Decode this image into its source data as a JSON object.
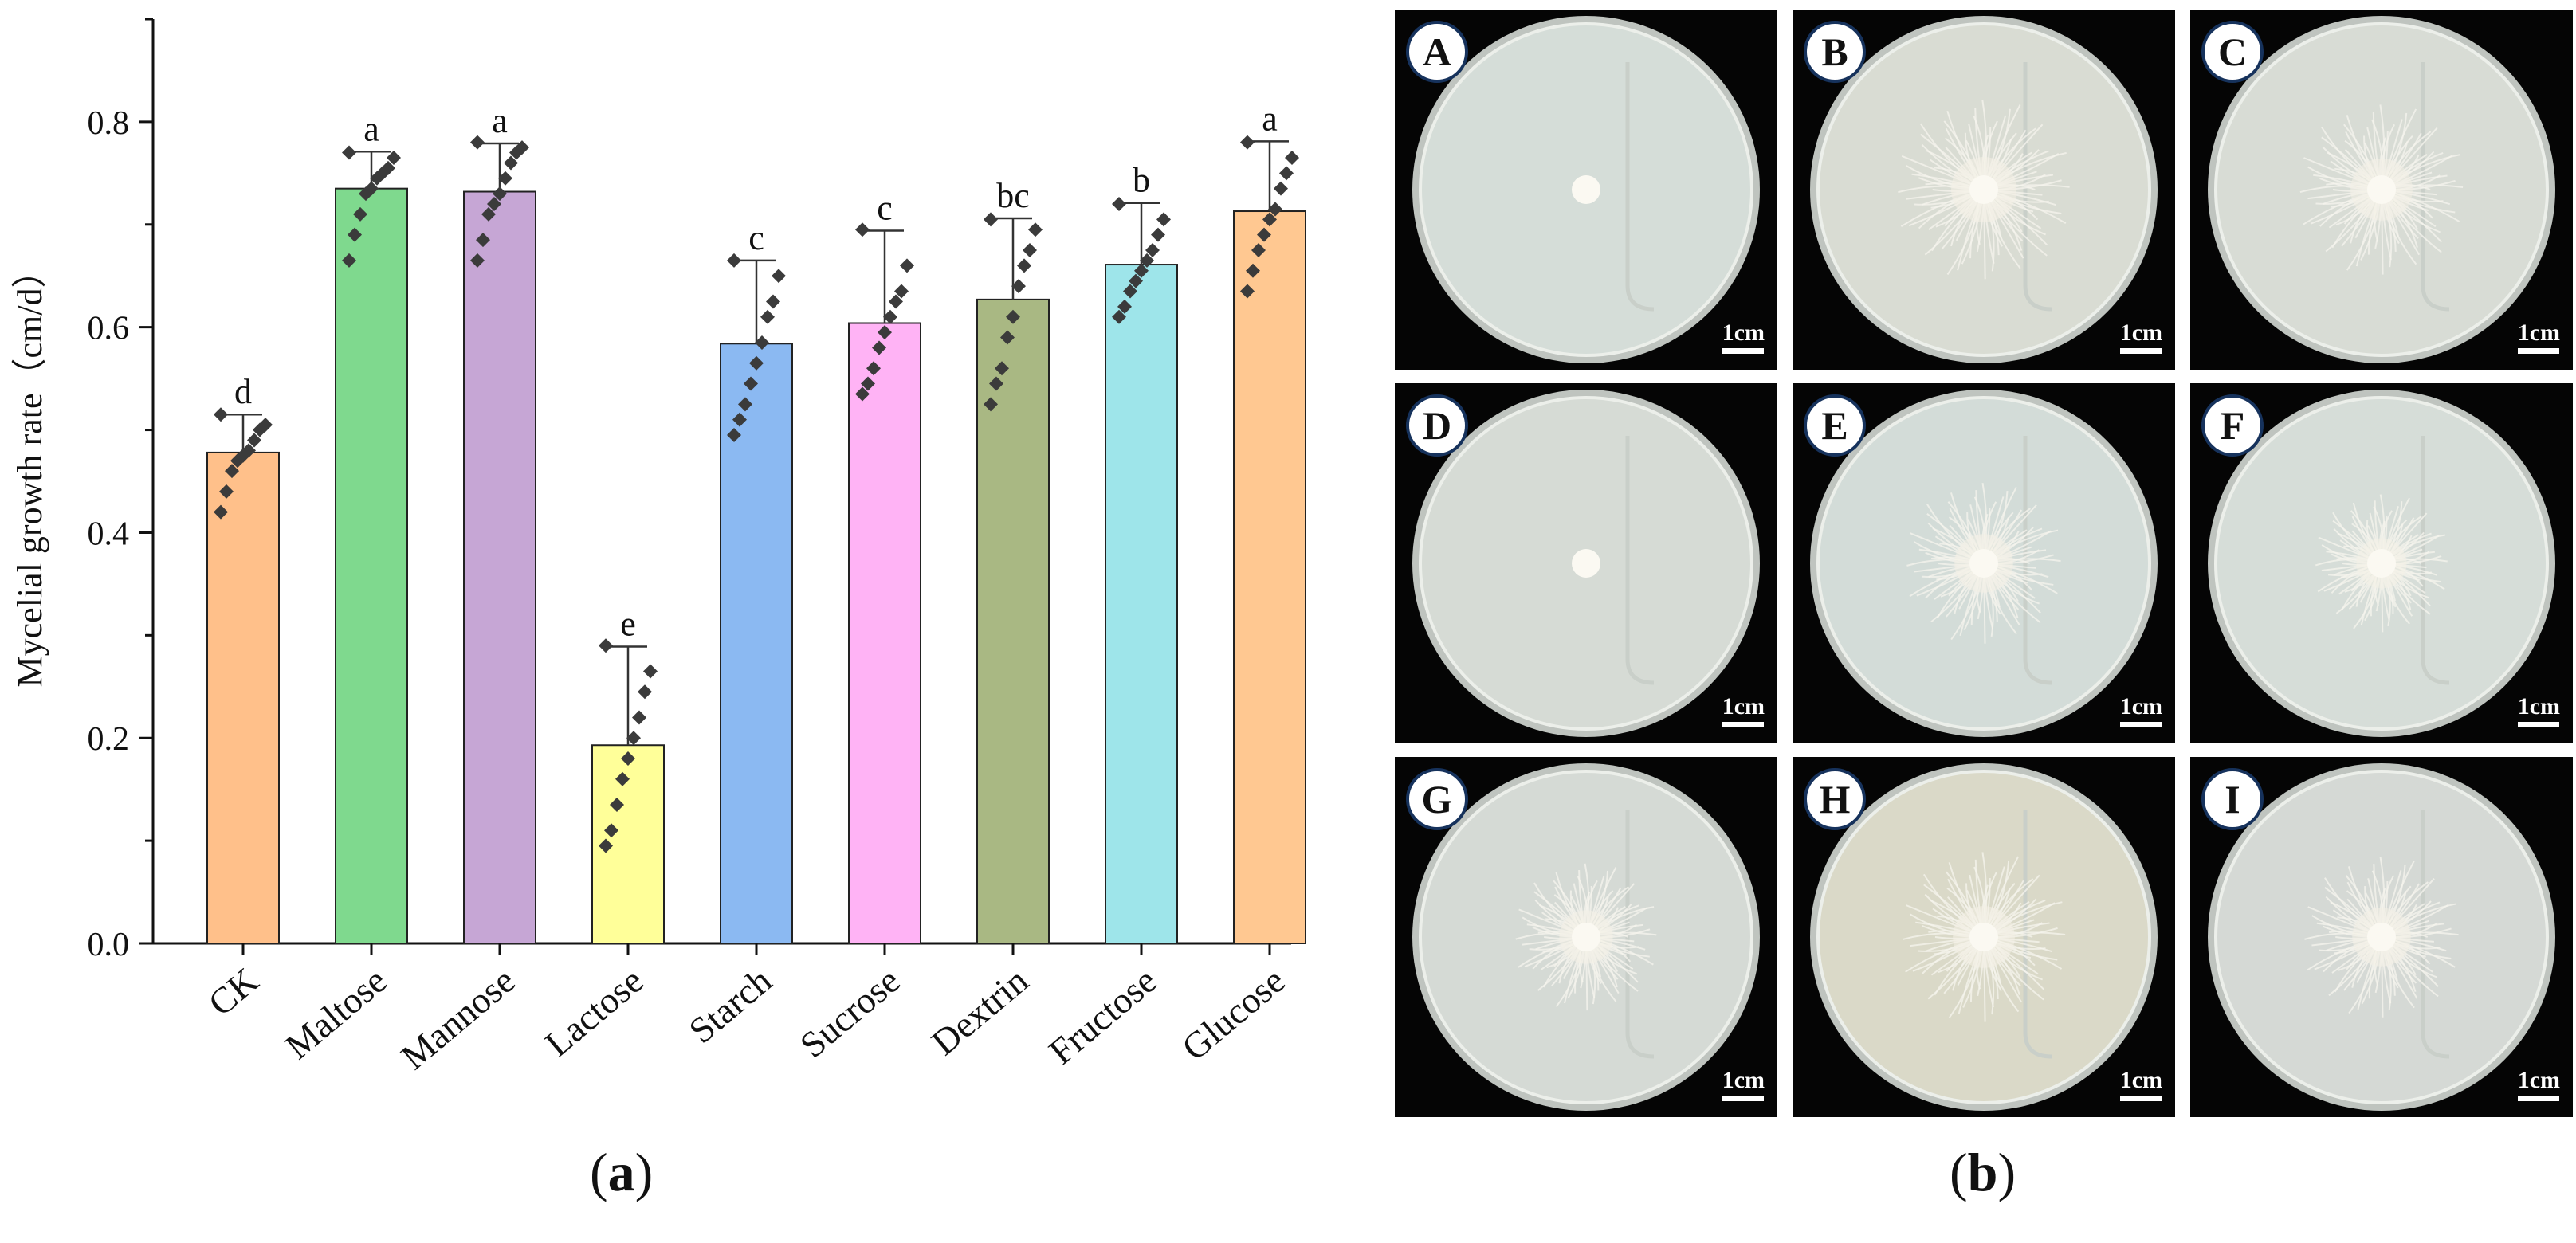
{
  "chart_data": {
    "type": "bar",
    "ylabel": "Mycelial growth rate（cm/d）",
    "xlabel": "",
    "ylim": [
      0,
      0.9
    ],
    "yticks": [
      0.0,
      0.2,
      0.4,
      0.6,
      0.8
    ],
    "ytick_labels": [
      "0.0",
      "0.2",
      "0.4",
      "0.6",
      "0.8"
    ],
    "categories": [
      "CK",
      "Maltose",
      "Mannose",
      "Lactose",
      "Starch",
      "Sucrose",
      "Dextrin",
      "Fructose",
      "Glucose"
    ],
    "values": [
      0.478,
      0.735,
      0.732,
      0.193,
      0.584,
      0.604,
      0.627,
      0.661,
      0.713
    ],
    "errors": [
      0.037,
      0.036,
      0.047,
      0.096,
      0.081,
      0.09,
      0.079,
      0.06,
      0.068
    ],
    "letters": [
      "d",
      "a",
      "a",
      "e",
      "c",
      "c",
      "bc",
      "b",
      "a"
    ],
    "colors": [
      "#FFC08A",
      "#7FD98E",
      "#C6A6D5",
      "#FFFF99",
      "#8BB9F2",
      "#FFB3F5",
      "#A9B883",
      "#9EE5EA",
      "#FFC891"
    ],
    "points": [
      [
        0.42,
        0.44,
        0.46,
        0.47,
        0.475,
        0.48,
        0.49,
        0.5,
        0.505,
        0.515
      ],
      [
        0.665,
        0.69,
        0.71,
        0.73,
        0.735,
        0.745,
        0.75,
        0.755,
        0.765,
        0.77
      ],
      [
        0.665,
        0.685,
        0.71,
        0.72,
        0.73,
        0.745,
        0.76,
        0.77,
        0.775,
        0.78
      ],
      [
        0.095,
        0.11,
        0.135,
        0.16,
        0.18,
        0.2,
        0.22,
        0.245,
        0.265,
        0.29
      ],
      [
        0.495,
        0.51,
        0.525,
        0.545,
        0.565,
        0.585,
        0.61,
        0.625,
        0.65,
        0.665
      ],
      [
        0.535,
        0.545,
        0.56,
        0.58,
        0.595,
        0.61,
        0.625,
        0.635,
        0.66,
        0.695
      ],
      [
        0.525,
        0.545,
        0.56,
        0.59,
        0.61,
        0.64,
        0.66,
        0.675,
        0.695,
        0.705
      ],
      [
        0.61,
        0.62,
        0.635,
        0.645,
        0.655,
        0.665,
        0.675,
        0.69,
        0.705,
        0.72
      ],
      [
        0.635,
        0.655,
        0.675,
        0.69,
        0.705,
        0.715,
        0.735,
        0.75,
        0.765,
        0.78
      ]
    ],
    "marker_color": "#3b3b3b",
    "grid": false,
    "legend": "none"
  },
  "captions": {
    "a": "a",
    "b": "b",
    "open": "(",
    "close": ")"
  },
  "plates": {
    "scale_label": "1cm",
    "items": [
      {
        "letter": "A",
        "growth": 0.0,
        "tint": "#D5DDD8"
      },
      {
        "letter": "B",
        "growth": 0.78,
        "tint": "#D9DCD3"
      },
      {
        "letter": "C",
        "growth": 0.74,
        "tint": "#D8DCD5"
      },
      {
        "letter": "D",
        "growth": 0.0,
        "tint": "#D6DBD5"
      },
      {
        "letter": "E",
        "growth": 0.7,
        "tint": "#D3DCD8"
      },
      {
        "letter": "F",
        "growth": 0.6,
        "tint": "#D6DDD8"
      },
      {
        "letter": "G",
        "growth": 0.64,
        "tint": "#D5DAD5"
      },
      {
        "letter": "H",
        "growth": 0.74,
        "tint": "#DAD9C8"
      },
      {
        "letter": "I",
        "growth": 0.7,
        "tint": "#D5D9D5"
      }
    ]
  }
}
